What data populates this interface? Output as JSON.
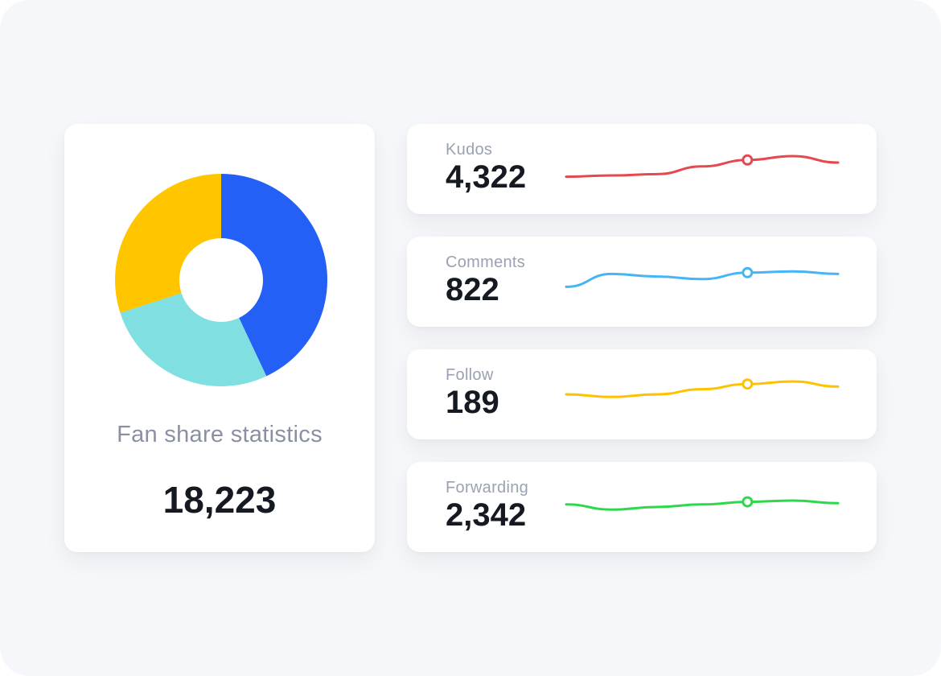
{
  "fan_share": {
    "title": "Fan share statistics",
    "total": "18,223",
    "chart_data": {
      "type": "pie",
      "donut": true,
      "slices": [
        {
          "share": 0.43,
          "color": "#2460f5"
        },
        {
          "share": 0.27,
          "color": "#80dfe0"
        },
        {
          "share": 0.3,
          "color": "#ffc600"
        }
      ]
    }
  },
  "stats": [
    {
      "label": "Kudos",
      "value": "4,322",
      "color": "#e5484d",
      "trend": [
        0.2,
        0.25,
        0.3,
        0.6,
        0.85,
        1.0,
        0.75
      ]
    },
    {
      "label": "Comments",
      "value": "822",
      "color": "#45b5f5",
      "trend": [
        0.3,
        0.8,
        0.7,
        0.6,
        0.85,
        0.9,
        0.8
      ]
    },
    {
      "label": "Follow",
      "value": "189",
      "color": "#ffc200",
      "trend": [
        0.5,
        0.4,
        0.5,
        0.7,
        0.9,
        1.0,
        0.8
      ]
    },
    {
      "label": "Forwarding",
      "value": "2,342",
      "color": "#2dd84a",
      "trend": [
        0.6,
        0.4,
        0.5,
        0.6,
        0.7,
        0.75,
        0.65
      ]
    }
  ]
}
